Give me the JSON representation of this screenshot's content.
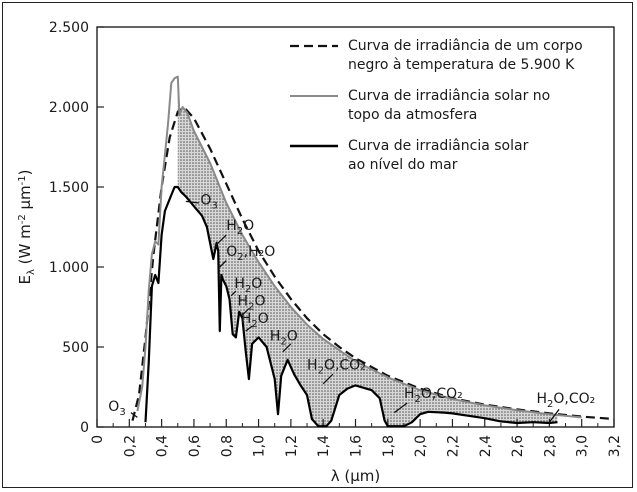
{
  "chart_data": {
    "type": "line",
    "x_unit_label": "λ (µm)",
    "y_label": {
      "main": "E",
      "sub": "λ",
      "rest": " (W m",
      "sup1": "-2",
      "mid": " µm",
      "sup2": "-1",
      "end": ")"
    },
    "xlim": [
      0,
      3.2
    ],
    "ylim": [
      0,
      2500
    ],
    "x_ticks": [
      {
        "v": 0,
        "label": "0"
      },
      {
        "v": 0.2,
        "label": "0,2"
      },
      {
        "v": 0.4,
        "label": "0,4"
      },
      {
        "v": 0.6,
        "label": "0,6"
      },
      {
        "v": 0.8,
        "label": "0,8"
      },
      {
        "v": 1.0,
        "label": "1,0"
      },
      {
        "v": 1.2,
        "label": "1,2"
      },
      {
        "v": 1.4,
        "label": "1,4"
      },
      {
        "v": 1.6,
        "label": "1,6"
      },
      {
        "v": 1.8,
        "label": "1,8"
      },
      {
        "v": 2.0,
        "label": "2,0"
      },
      {
        "v": 2.2,
        "label": "2,2"
      },
      {
        "v": 2.4,
        "label": "2,4"
      },
      {
        "v": 2.6,
        "label": "2,6"
      },
      {
        "v": 2.8,
        "label": "2,8"
      },
      {
        "v": 3.0,
        "label": "3,0"
      },
      {
        "v": 3.2,
        "label": "3,2"
      }
    ],
    "y_ticks": [
      {
        "v": 0,
        "label": "0"
      },
      {
        "v": 500,
        "label": "500"
      },
      {
        "v": 1000,
        "label": "1.000"
      },
      {
        "v": 1500,
        "label": "1.500"
      },
      {
        "v": 2000,
        "label": "2.000"
      },
      {
        "v": 2500,
        "label": "2.500"
      }
    ],
    "legend": {
      "placement": "top-right",
      "entries": [
        {
          "series": "blackbody",
          "lines": [
            "Curva de irradiância de um corpo",
            "negro à temperatura de 5.900 K"
          ]
        },
        {
          "series": "top",
          "lines": [
            "Curva de irradiância solar no",
            "topo da atmosfera"
          ]
        },
        {
          "series": "sea",
          "lines": [
            "Curva de irradiância solar",
            "ao nível do mar"
          ]
        }
      ]
    },
    "series": [
      {
        "id": "blackbody",
        "style": "dashed",
        "color": "#111111",
        "points": [
          [
            0.22,
            40
          ],
          [
            0.26,
            200
          ],
          [
            0.3,
            560
          ],
          [
            0.35,
            1080
          ],
          [
            0.4,
            1500
          ],
          [
            0.45,
            1810
          ],
          [
            0.5,
            1970
          ],
          [
            0.52,
            1990
          ],
          [
            0.55,
            1985
          ],
          [
            0.6,
            1930
          ],
          [
            0.7,
            1740
          ],
          [
            0.8,
            1520
          ],
          [
            0.9,
            1300
          ],
          [
            1.0,
            1100
          ],
          [
            1.1,
            940
          ],
          [
            1.2,
            800
          ],
          [
            1.3,
            680
          ],
          [
            1.4,
            580
          ],
          [
            1.5,
            500
          ],
          [
            1.6,
            430
          ],
          [
            1.8,
            320
          ],
          [
            2.0,
            240
          ],
          [
            2.2,
            180
          ],
          [
            2.4,
            140
          ],
          [
            2.6,
            110
          ],
          [
            2.8,
            85
          ],
          [
            3.0,
            65
          ],
          [
            3.2,
            50
          ]
        ]
      },
      {
        "id": "top",
        "style": "solid",
        "color": "#8a8a8a",
        "points": [
          [
            0.25,
            100
          ],
          [
            0.28,
            250
          ],
          [
            0.3,
            500
          ],
          [
            0.32,
            850
          ],
          [
            0.34,
            1080
          ],
          [
            0.36,
            1160
          ],
          [
            0.38,
            1140
          ],
          [
            0.4,
            1500
          ],
          [
            0.42,
            1700
          ],
          [
            0.44,
            1900
          ],
          [
            0.46,
            2150
          ],
          [
            0.48,
            2180
          ],
          [
            0.5,
            2190
          ],
          [
            0.51,
            1950
          ],
          [
            0.53,
            2000
          ],
          [
            0.56,
            1960
          ],
          [
            0.6,
            1850
          ],
          [
            0.7,
            1650
          ],
          [
            0.8,
            1400
          ],
          [
            0.9,
            1200
          ],
          [
            1.0,
            1030
          ],
          [
            1.1,
            880
          ],
          [
            1.2,
            750
          ],
          [
            1.3,
            640
          ],
          [
            1.4,
            550
          ],
          [
            1.5,
            480
          ],
          [
            1.6,
            410
          ],
          [
            1.8,
            310
          ],
          [
            2.0,
            230
          ],
          [
            2.2,
            175
          ],
          [
            2.4,
            135
          ],
          [
            2.6,
            105
          ],
          [
            2.8,
            80
          ],
          [
            3.0,
            60
          ]
        ]
      },
      {
        "id": "sea",
        "style": "solid",
        "color": "#000000",
        "points": [
          [
            0.3,
            30
          ],
          [
            0.32,
            400
          ],
          [
            0.34,
            880
          ],
          [
            0.36,
            950
          ],
          [
            0.38,
            900
          ],
          [
            0.4,
            1200
          ],
          [
            0.42,
            1350
          ],
          [
            0.44,
            1400
          ],
          [
            0.46,
            1450
          ],
          [
            0.48,
            1500
          ],
          [
            0.5,
            1500
          ],
          [
            0.52,
            1470
          ],
          [
            0.55,
            1440
          ],
          [
            0.6,
            1380
          ],
          [
            0.65,
            1320
          ],
          [
            0.68,
            1250
          ],
          [
            0.7,
            1150
          ],
          [
            0.72,
            1050
          ],
          [
            0.74,
            1150
          ],
          [
            0.75,
            1100
          ],
          [
            0.76,
            600
          ],
          [
            0.77,
            950
          ],
          [
            0.78,
            920
          ],
          [
            0.8,
            880
          ],
          [
            0.82,
            800
          ],
          [
            0.84,
            580
          ],
          [
            0.86,
            560
          ],
          [
            0.88,
            720
          ],
          [
            0.9,
            680
          ],
          [
            0.92,
            480
          ],
          [
            0.94,
            300
          ],
          [
            0.96,
            520
          ],
          [
            1.0,
            560
          ],
          [
            1.05,
            500
          ],
          [
            1.1,
            300
          ],
          [
            1.12,
            80
          ],
          [
            1.14,
            320
          ],
          [
            1.18,
            420
          ],
          [
            1.22,
            330
          ],
          [
            1.26,
            260
          ],
          [
            1.3,
            200
          ],
          [
            1.33,
            50
          ],
          [
            1.37,
            5
          ],
          [
            1.42,
            5
          ],
          [
            1.45,
            40
          ],
          [
            1.5,
            200
          ],
          [
            1.55,
            240
          ],
          [
            1.6,
            260
          ],
          [
            1.7,
            230
          ],
          [
            1.75,
            180
          ],
          [
            1.78,
            40
          ],
          [
            1.8,
            5
          ],
          [
            1.9,
            5
          ],
          [
            1.95,
            30
          ],
          [
            2.0,
            80
          ],
          [
            2.05,
            95
          ],
          [
            2.15,
            90
          ],
          [
            2.2,
            85
          ],
          [
            2.3,
            70
          ],
          [
            2.4,
            55
          ],
          [
            2.5,
            35
          ],
          [
            2.6,
            25
          ],
          [
            2.7,
            30
          ],
          [
            2.8,
            25
          ],
          [
            2.85,
            30
          ]
        ]
      }
    ],
    "annotations": [
      {
        "pre": "O",
        "sub": "3",
        "post": "",
        "x": 0.07,
        "y": 100,
        "lx1": 0.21,
        "ly1": 90,
        "lx2": 0.25,
        "ly2": 60
      },
      {
        "pre": "O",
        "sub": "3",
        "post": "",
        "x": 0.64,
        "y": 1390,
        "lx1": 0.55,
        "ly1": 1410,
        "lx2": 0.63,
        "ly2": 1400
      },
      {
        "pre": "H",
        "sub": "2",
        "post": "O",
        "x": 0.8,
        "y": 1230,
        "lx1": 0.73,
        "ly1": 1130,
        "lx2": 0.8,
        "ly2": 1200
      },
      {
        "pre": "O",
        "sub": "2",
        "post": ",H₂O",
        "x": 0.8,
        "y": 1070,
        "lx1": 0.76,
        "ly1": 1000,
        "lx2": 0.8,
        "ly2": 1040
      },
      {
        "pre": "H",
        "sub": "2",
        "post": "O",
        "x": 0.85,
        "y": 870,
        "lx1": 0.83,
        "ly1": 820,
        "lx2": 0.86,
        "ly2": 850
      },
      {
        "pre": "H",
        "sub": "2",
        "post": "O",
        "x": 0.87,
        "y": 760,
        "lx1": 0.9,
        "ly1": 700,
        "lx2": 0.94,
        "ly2": 740
      },
      {
        "pre": "H",
        "sub": "2",
        "post": "O",
        "x": 0.89,
        "y": 650,
        "lx1": 0.92,
        "ly1": 600,
        "lx2": 0.96,
        "ly2": 630
      },
      {
        "pre": "H",
        "sub": "2",
        "post": "O",
        "x": 1.07,
        "y": 540,
        "lx1": 1.15,
        "ly1": 470,
        "lx2": 1.2,
        "ly2": 520
      },
      {
        "pre": "H",
        "sub": "2",
        "post": "O,CO₂",
        "x": 1.3,
        "y": 360,
        "lx1": 1.4,
        "ly1": 270,
        "lx2": 1.46,
        "ly2": 330
      },
      {
        "pre": "H",
        "sub": "2",
        "post": "O,CO₂",
        "x": 1.9,
        "y": 180,
        "lx1": 1.84,
        "ly1": 90,
        "lx2": 1.92,
        "ly2": 150
      },
      {
        "pre": "H",
        "sub": "2",
        "post": "O,CO₂",
        "x": 2.72,
        "y": 150,
        "lx1": 2.8,
        "ly1": 30,
        "lx2": 2.86,
        "ly2": 110
      }
    ]
  }
}
